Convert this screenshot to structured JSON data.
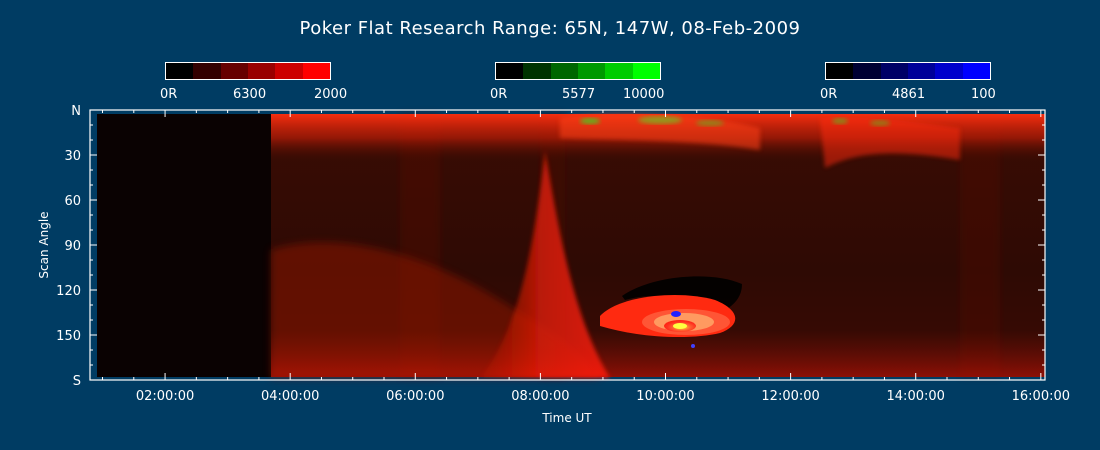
{
  "chart_data": {
    "type": "heatmap",
    "title": "Poker Flat Research Range: 65N, 147W, 08-Feb-2009",
    "xlabel": "Time UT",
    "ylabel": "Scan Angle",
    "x_ticks": [
      "02:00:00",
      "04:00:00",
      "06:00:00",
      "08:00:00",
      "10:00:00",
      "12:00:00",
      "14:00:00",
      "16:00:00"
    ],
    "x_range": [
      "00:48:00",
      "16:04:00"
    ],
    "y_ticks": [
      "N",
      "30",
      "60",
      "90",
      "120",
      "150",
      "S"
    ],
    "y_range": [
      0,
      180
    ],
    "data_start": "03:45:00",
    "colorbars": [
      {
        "name": "6300",
        "min_label": "0R",
        "max_label": "2000",
        "color": "#ff0000"
      },
      {
        "name": "5577",
        "min_label": "0R",
        "max_label": "10000",
        "color": "#00ff00"
      },
      {
        "name": "4861",
        "min_label": "0R",
        "max_label": "100",
        "color": "#0000ff"
      }
    ]
  }
}
